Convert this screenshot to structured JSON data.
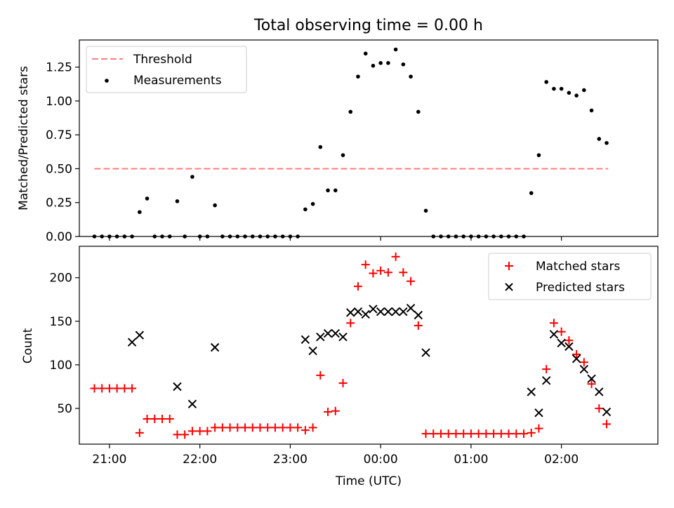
{
  "title": "Total observing time = 0.00 h",
  "chart_data": [
    {
      "type": "scatter",
      "ylabel": "Matched/Predicted stars",
      "ylim": [
        0,
        1.45
      ],
      "xlim": [
        "20:40",
        "03:04"
      ],
      "yticks": [
        "0.00",
        "0.25",
        "0.50",
        "0.75",
        "1.00",
        "1.25"
      ],
      "legend_position": "top-left",
      "legend": [
        "Threshold",
        "Measurements"
      ],
      "threshold": {
        "name": "Threshold",
        "value": 0.5,
        "x": [
          "20:50",
          "02:31"
        ],
        "color": "#ff7f7f",
        "style": "dashed"
      },
      "series": [
        {
          "name": "Measurements",
          "color": "#000000",
          "marker": "dot",
          "x": [
            "20:50",
            "20:55",
            "21:00",
            "21:05",
            "21:10",
            "21:15",
            "21:20",
            "21:25",
            "21:30",
            "21:35",
            "21:40",
            "21:45",
            "21:50",
            "21:55",
            "22:00",
            "22:05",
            "22:10",
            "22:15",
            "22:20",
            "22:25",
            "22:30",
            "22:35",
            "22:40",
            "22:45",
            "22:50",
            "22:55",
            "23:00",
            "23:05",
            "23:10",
            "23:15",
            "23:20",
            "23:25",
            "23:30",
            "23:35",
            "23:40",
            "23:45",
            "23:50",
            "23:55",
            "00:00",
            "00:05",
            "00:10",
            "00:15",
            "00:20",
            "00:25",
            "00:30",
            "00:35",
            "00:40",
            "00:45",
            "00:50",
            "00:55",
            "01:00",
            "01:05",
            "01:10",
            "01:15",
            "01:20",
            "01:25",
            "01:30",
            "01:35",
            "01:40",
            "01:45",
            "01:50",
            "01:55",
            "02:00",
            "02:05",
            "02:10",
            "02:15",
            "02:20",
            "02:25",
            "02:30"
          ],
          "y": [
            0,
            0,
            0,
            0,
            0,
            0,
            0.18,
            0.28,
            0,
            0,
            0,
            0.26,
            0,
            0.44,
            0,
            0,
            0.23,
            0,
            0,
            0,
            0,
            0,
            0,
            0,
            0,
            0,
            0,
            0,
            0.2,
            0.24,
            0.66,
            0.34,
            0.34,
            0.6,
            0.92,
            1.18,
            1.35,
            1.26,
            1.28,
            1.28,
            1.38,
            1.27,
            1.18,
            0.92,
            0.19,
            0,
            0,
            0,
            0,
            0,
            0,
            0,
            0,
            0,
            0,
            0,
            0,
            0,
            0.32,
            0.6,
            1.14,
            1.09,
            1.09,
            1.06,
            1.04,
            1.08,
            0.93,
            0.72,
            0.69
          ]
        }
      ]
    },
    {
      "type": "scatter",
      "xlabel": "Time (UTC)",
      "ylabel": "Count",
      "xlim": [
        "20:40",
        "03:04"
      ],
      "ylim": [
        9,
        236
      ],
      "xticks": [
        "21:00",
        "22:00",
        "23:00",
        "00:00",
        "01:00",
        "02:00"
      ],
      "yticks": [
        "50",
        "100",
        "150",
        "200"
      ],
      "legend_position": "top-right",
      "legend": [
        "Matched stars",
        "Predicted stars"
      ],
      "series": [
        {
          "name": "Matched stars",
          "color": "#ff0000",
          "marker": "plus",
          "x": [
            "20:50",
            "20:55",
            "21:00",
            "21:05",
            "21:10",
            "21:15",
            "21:20",
            "21:25",
            "21:30",
            "21:35",
            "21:40",
            "21:45",
            "21:50",
            "21:55",
            "22:00",
            "22:05",
            "22:10",
            "22:15",
            "22:20",
            "22:25",
            "22:30",
            "22:35",
            "22:40",
            "22:45",
            "22:50",
            "22:55",
            "23:00",
            "23:05",
            "23:10",
            "23:15",
            "23:20",
            "23:25",
            "23:30",
            "23:35",
            "23:40",
            "23:45",
            "23:50",
            "23:55",
            "00:00",
            "00:05",
            "00:10",
            "00:15",
            "00:20",
            "00:25",
            "00:30",
            "00:35",
            "00:40",
            "00:45",
            "00:50",
            "00:55",
            "01:00",
            "01:05",
            "01:10",
            "01:15",
            "01:20",
            "01:25",
            "01:30",
            "01:35",
            "01:40",
            "01:45",
            "01:50",
            "01:55",
            "02:00",
            "02:05",
            "02:10",
            "02:15",
            "02:20",
            "02:25",
            "02:30"
          ],
          "y": [
            73,
            73,
            73,
            73,
            73,
            73,
            22,
            38,
            38,
            38,
            38,
            20,
            20,
            24,
            24,
            24,
            28,
            28,
            28,
            28,
            28,
            28,
            28,
            28,
            28,
            28,
            28,
            28,
            25,
            28,
            88,
            46,
            47,
            79,
            148,
            190,
            215,
            205,
            208,
            206,
            224,
            206,
            196,
            145,
            21,
            21,
            21,
            21,
            21,
            21,
            21,
            21,
            21,
            21,
            21,
            21,
            21,
            21,
            22,
            27,
            95,
            148,
            138,
            128,
            112,
            103,
            78,
            50,
            32
          ]
        },
        {
          "name": "Predicted stars",
          "color": "#000000",
          "marker": "x",
          "x": [
            "21:15",
            "21:20",
            "21:45",
            "21:55",
            "22:10",
            "23:10",
            "23:15",
            "23:20",
            "23:25",
            "23:30",
            "23:35",
            "23:40",
            "23:45",
            "23:50",
            "23:55",
            "00:00",
            "00:05",
            "00:10",
            "00:15",
            "00:20",
            "00:25",
            "00:30",
            "01:40",
            "01:45",
            "01:50",
            "01:55",
            "02:00",
            "02:05",
            "02:10",
            "02:15",
            "02:20",
            "02:25",
            "02:30"
          ],
          "y": [
            126,
            134,
            75,
            55,
            120,
            129,
            116,
            132,
            136,
            136,
            132,
            160,
            161,
            158,
            164,
            161,
            161,
            161,
            161,
            165,
            157,
            114,
            69,
            45,
            82,
            135,
            125,
            121,
            107,
            95,
            84,
            69,
            46
          ]
        }
      ]
    }
  ]
}
